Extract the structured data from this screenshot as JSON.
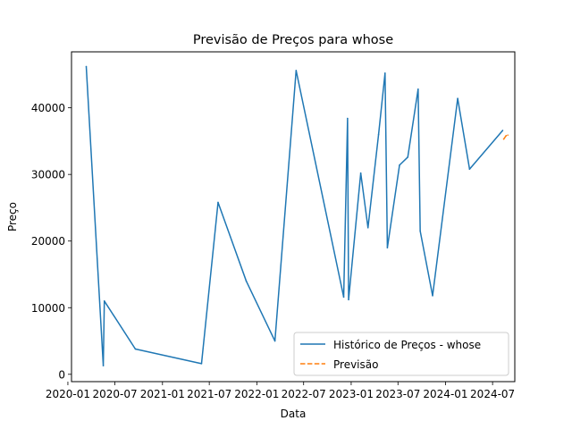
{
  "chart_data": {
    "type": "line",
    "title": "Previsão de Preços para whose",
    "xlabel": "Data",
    "ylabel": "Preço",
    "x_type": "date",
    "xlim": [
      "2020-01-15",
      "2024-09-25"
    ],
    "ylim": [
      -1100,
      48400
    ],
    "x_ticks": [
      {
        "date": "2020-01-01",
        "label": "2020-01"
      },
      {
        "date": "2020-07-01",
        "label": "2020-07"
      },
      {
        "date": "2021-01-01",
        "label": "2021-01"
      },
      {
        "date": "2021-07-01",
        "label": "2021-07"
      },
      {
        "date": "2022-01-01",
        "label": "2022-01"
      },
      {
        "date": "2022-07-01",
        "label": "2022-07"
      },
      {
        "date": "2023-01-01",
        "label": "2023-01"
      },
      {
        "date": "2023-07-01",
        "label": "2023-07"
      },
      {
        "date": "2024-01-01",
        "label": "2024-01"
      },
      {
        "date": "2024-07-01",
        "label": "2024-07"
      }
    ],
    "y_ticks": [
      0,
      10000,
      20000,
      30000,
      40000
    ],
    "grid": false,
    "legend_position": "lower-right",
    "series": [
      {
        "name": "Histórico de Preços - whose",
        "color": "#1f77b4",
        "style": "solid",
        "points": [
          {
            "x": "2020-03-12",
            "y": 46200
          },
          {
            "x": "2020-05-17",
            "y": 1300
          },
          {
            "x": "2020-05-21",
            "y": 11000
          },
          {
            "x": "2020-09-18",
            "y": 3800
          },
          {
            "x": "2021-06-01",
            "y": 1600
          },
          {
            "x": "2021-08-04",
            "y": 25800
          },
          {
            "x": "2021-11-21",
            "y": 14000
          },
          {
            "x": "2022-03-12",
            "y": 5000
          },
          {
            "x": "2022-06-02",
            "y": 45600
          },
          {
            "x": "2022-12-03",
            "y": 11600
          },
          {
            "x": "2022-12-18",
            "y": 38400
          },
          {
            "x": "2022-12-22",
            "y": 11200
          },
          {
            "x": "2023-02-07",
            "y": 30200
          },
          {
            "x": "2023-03-07",
            "y": 22000
          },
          {
            "x": "2023-04-17",
            "y": 36000
          },
          {
            "x": "2023-05-12",
            "y": 45200
          },
          {
            "x": "2023-05-21",
            "y": 19000
          },
          {
            "x": "2023-07-07",
            "y": 31400
          },
          {
            "x": "2023-08-08",
            "y": 32600
          },
          {
            "x": "2023-09-17",
            "y": 42800
          },
          {
            "x": "2023-09-25",
            "y": 21500
          },
          {
            "x": "2023-11-12",
            "y": 11800
          },
          {
            "x": "2024-02-17",
            "y": 41400
          },
          {
            "x": "2024-04-03",
            "y": 30800
          },
          {
            "x": "2024-08-09",
            "y": 36600
          }
        ]
      },
      {
        "name": "Previsão",
        "color": "#ff7f0e",
        "style": "dashed",
        "points": [
          {
            "x": "2024-08-13",
            "y": 35300
          },
          {
            "x": "2024-08-22",
            "y": 35800
          },
          {
            "x": "2024-08-29",
            "y": 35900
          }
        ]
      }
    ]
  }
}
